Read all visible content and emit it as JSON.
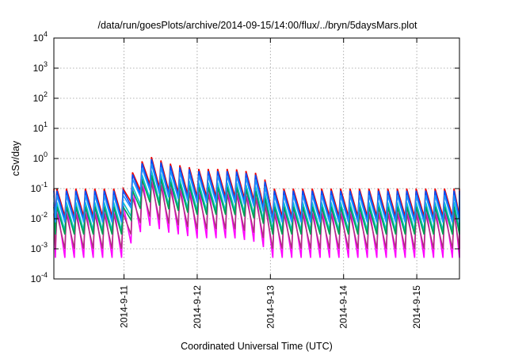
{
  "chart_data": {
    "type": "line",
    "title": "/data/run/goesPlots/archive/2014-09-15/14:00/flux/../bryn/5daysMars.plot",
    "xlabel": "Coordinated Universal Time (UTC)",
    "ylabel": "cSv/day",
    "x_scale": "time",
    "y_scale": "log",
    "xlim": [
      "2014-09-10T01:00",
      "2014-09-15T14:00"
    ],
    "ylim": [
      0.0001,
      10000
    ],
    "grid": true,
    "x_ticks": [
      {
        "value": "2014-09-11T00:00",
        "label": "2014-9-11"
      },
      {
        "value": "2014-09-12T00:00",
        "label": "2014-9-12"
      },
      {
        "value": "2014-09-13T00:00",
        "label": "2014-9-13"
      },
      {
        "value": "2014-09-14T00:00",
        "label": "2014-9-14"
      },
      {
        "value": "2014-09-15T00:00",
        "label": "2014-9-15"
      }
    ],
    "y_ticks": [
      {
        "value": 0.0001,
        "base": "10",
        "exp": "-4"
      },
      {
        "value": 0.001,
        "base": "10",
        "exp": "-3"
      },
      {
        "value": 0.01,
        "base": "10",
        "exp": "-2"
      },
      {
        "value": 0.1,
        "base": "10",
        "exp": "-1"
      },
      {
        "value": 1,
        "base": "10",
        "exp": "0"
      },
      {
        "value": 10,
        "base": "10",
        "exp": "1"
      },
      {
        "value": 100,
        "base": "10",
        "exp": "2"
      },
      {
        "value": 1000,
        "base": "10",
        "exp": "3"
      },
      {
        "value": 10000,
        "base": "10",
        "exp": "4"
      }
    ],
    "cycle": {
      "period_hours": 3.1,
      "first_peak_hour": 1.0,
      "trough_lag_hours": 2.6,
      "count": 44
    },
    "envelope": [
      {
        "t": "2014-09-10T01:00",
        "factor": 1.0
      },
      {
        "t": "2014-09-11T00:00",
        "factor": 1.0
      },
      {
        "t": "2014-09-11T04:00",
        "factor": 4.5
      },
      {
        "t": "2014-09-11T08:00",
        "factor": 12.0
      },
      {
        "t": "2014-09-11T14:00",
        "factor": 7.0
      },
      {
        "t": "2014-09-12T00:00",
        "factor": 4.5
      },
      {
        "t": "2014-09-12T12:00",
        "factor": 4.5
      },
      {
        "t": "2014-09-12T20:00",
        "factor": 3.2
      },
      {
        "t": "2014-09-13T00:00",
        "factor": 1.0
      },
      {
        "t": "2014-09-15T14:00",
        "factor": 1.0
      }
    ],
    "series": [
      {
        "color": "#ff00ff",
        "base_peak": 0.03,
        "base_trough": 0.0005
      },
      {
        "color": "#b03080",
        "base_peak": 0.015,
        "base_trough": 0.001
      },
      {
        "color": "#00c8c8",
        "base_peak": 0.035,
        "base_trough": 0.004
      },
      {
        "color": "#00a050",
        "base_peak": 0.025,
        "base_trough": 0.003
      },
      {
        "color": "#ee0000",
        "base_peak": 0.1,
        "base_trough": 0.012
      },
      {
        "color": "#0050ff",
        "base_peak": 0.085,
        "base_trough": 0.009
      },
      {
        "color": "#1e90ff",
        "base_peak": 0.06,
        "base_trough": 0.0075
      }
    ]
  }
}
